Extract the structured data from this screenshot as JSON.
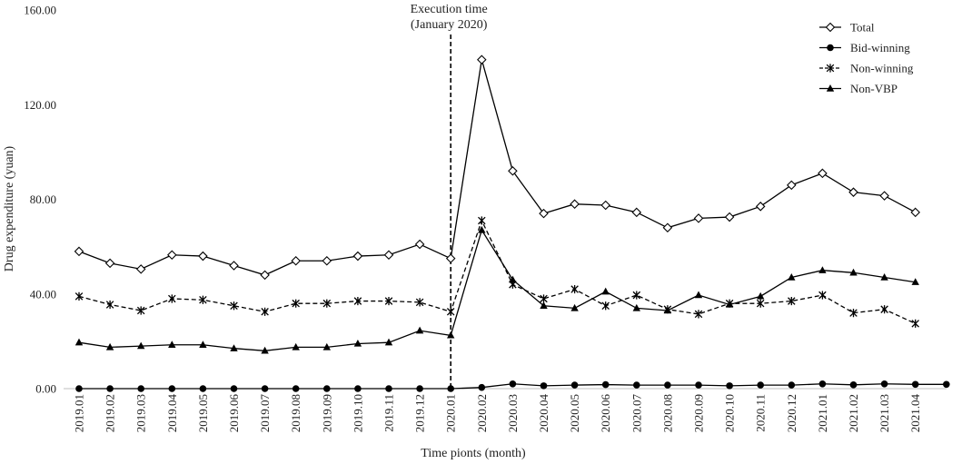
{
  "chart_data": {
    "type": "line",
    "title": "",
    "xlabel": "Time pionts (month)",
    "ylabel": "Drug expenditure (yuan)",
    "ylim": [
      0,
      160
    ],
    "y_ticks": [
      "0.00",
      "40.00",
      "80.00",
      "120.00",
      "160.00"
    ],
    "grid": false,
    "legend_position": "top-right",
    "categories": [
      "2019.01",
      "2019.02",
      "2019.03",
      "2019.04",
      "2019.05",
      "2019.06",
      "2019.07",
      "2019.08",
      "2019.09",
      "2019.10",
      "2019.11",
      "2019.12",
      "2020.01",
      "2020.02",
      "2020.03",
      "2020.04",
      "2020.05",
      "2020.06",
      "2020.07",
      "2020.08",
      "2020.09",
      "2020.10",
      "2020.11",
      "2020.12",
      "2021.01",
      "2021.02",
      "2021.03",
      "2021.04",
      ""
    ],
    "annotation": {
      "category": "2020.01",
      "lines": [
        "Execution time",
        "(January 2020)"
      ]
    },
    "series": [
      {
        "name": "Total",
        "marker": "diamond",
        "dash": "solid",
        "values": [
          58,
          53,
          50.5,
          56.5,
          56,
          52,
          48,
          54,
          54,
          56,
          56.5,
          61,
          55,
          139,
          92,
          74,
          78,
          77.5,
          74.5,
          68,
          72,
          72.5,
          77,
          86,
          91,
          83,
          81.5,
          74.5,
          null
        ]
      },
      {
        "name": "Bid-winning",
        "marker": "circle",
        "dash": "solid",
        "values": [
          0,
          0,
          0,
          0,
          0,
          0,
          0,
          0,
          0,
          0,
          0,
          0,
          0,
          0.5,
          2,
          1.2,
          1.5,
          1.7,
          1.5,
          1.5,
          1.5,
          1.2,
          1.5,
          1.5,
          2,
          1.6,
          2,
          1.8,
          1.8
        ]
      },
      {
        "name": "Non-winning",
        "marker": "star",
        "dash": "dashed",
        "values": [
          39,
          35.5,
          33,
          38,
          37.5,
          35,
          32.5,
          36,
          36,
          37,
          37,
          36.5,
          32.5,
          71,
          44,
          38,
          42,
          35,
          39.5,
          33.5,
          31.5,
          36,
          36,
          37,
          39.5,
          32,
          33.5,
          27.5,
          null
        ]
      },
      {
        "name": "Non-VBP",
        "marker": "triangle",
        "dash": "solid",
        "values": [
          19.5,
          17.5,
          18,
          18.5,
          18.5,
          17,
          16,
          17.5,
          17.5,
          19,
          19.5,
          24.5,
          22.5,
          67,
          46,
          35,
          34,
          41,
          34,
          33,
          39.5,
          35.5,
          39,
          47,
          50,
          49,
          47,
          45,
          null
        ]
      }
    ]
  }
}
